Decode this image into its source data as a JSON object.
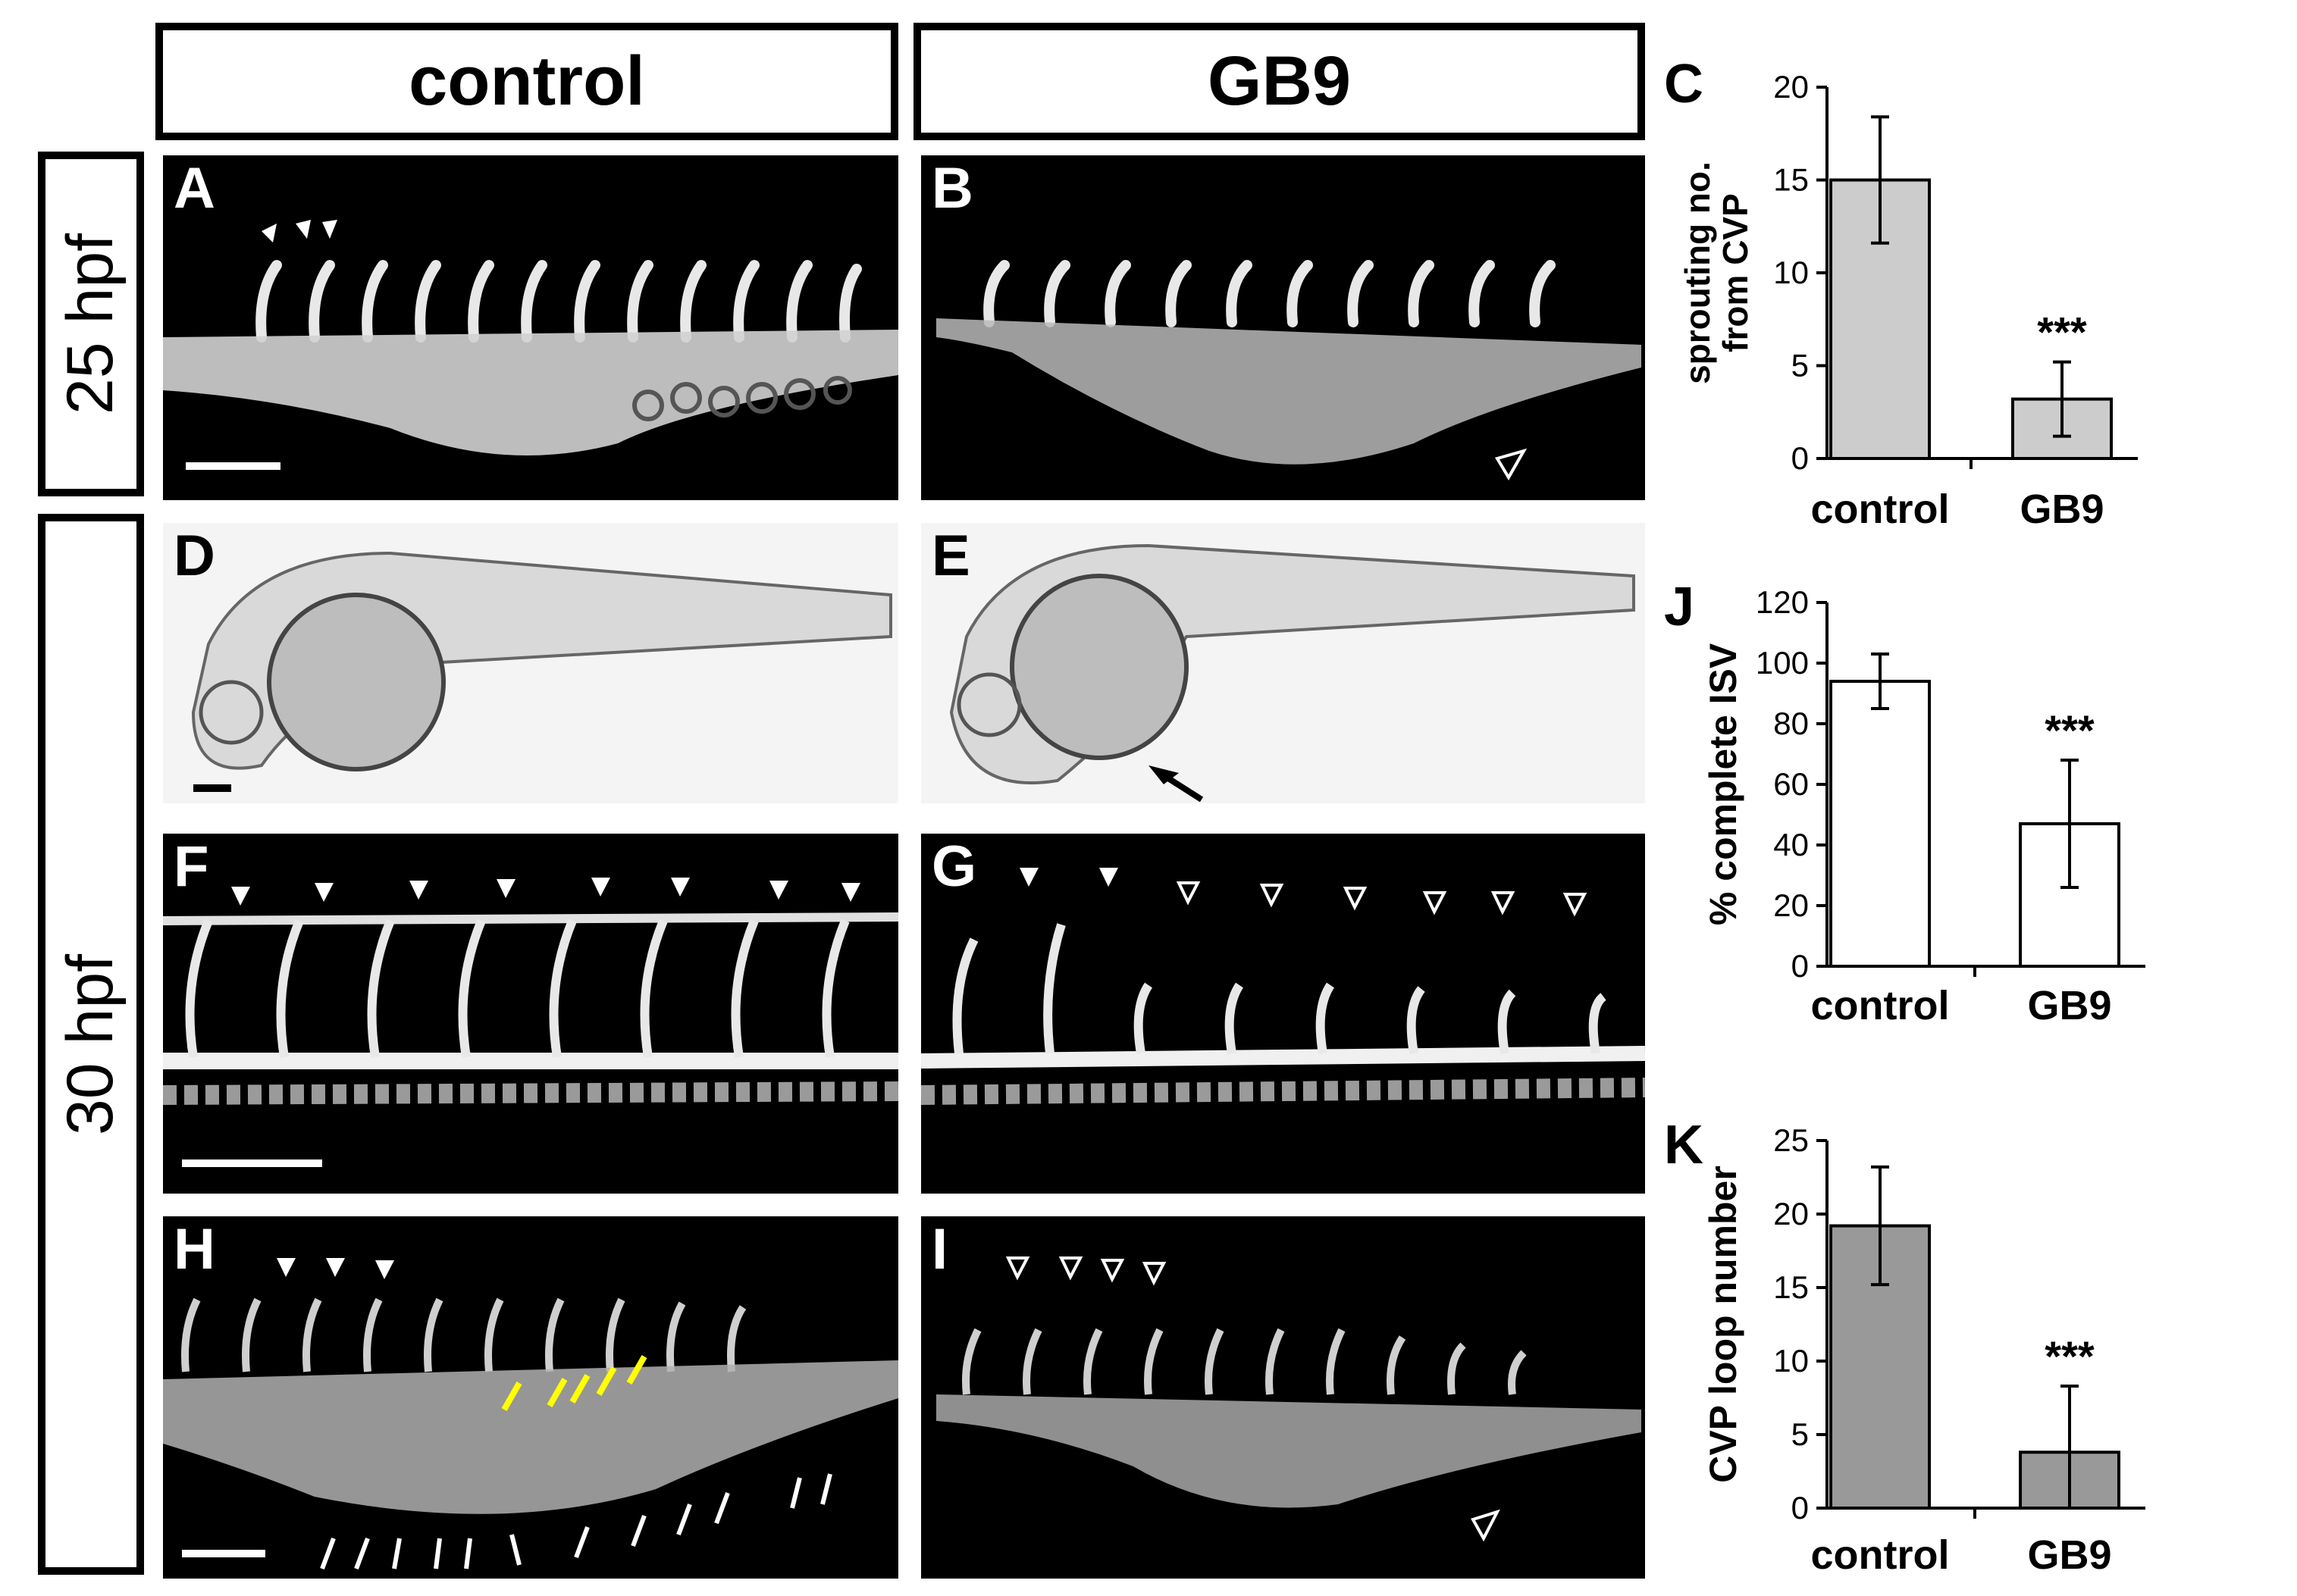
{
  "columns": {
    "left": "control",
    "right": "GB9"
  },
  "rows": {
    "top": "25 hpf",
    "bottom": "30 hpf"
  },
  "panels": {
    "A": "A",
    "B": "B",
    "D": "D",
    "E": "E",
    "F": "F",
    "G": "G",
    "H": "H",
    "I": "I"
  },
  "colors": {
    "arrow_white": "#ffffff",
    "arrow_yellow": "#ffff00",
    "fluor_bg": "#000000",
    "bright_bg": "#f4f4f4"
  },
  "chart_data": [
    {
      "panel": "C",
      "type": "bar",
      "categories": [
        "control",
        "GB9"
      ],
      "values": [
        15,
        3.2
      ],
      "errors": [
        3.4,
        2
      ],
      "ylabel": "sprouting no. from CVP",
      "ylim": [
        0,
        20
      ],
      "yticks": [
        0,
        5,
        10,
        15,
        20
      ],
      "bar_color": "#cccccc",
      "annotations": [
        {
          "category": "GB9",
          "text": "***"
        }
      ]
    },
    {
      "panel": "J",
      "type": "bar",
      "categories": [
        "control",
        "GB9"
      ],
      "values": [
        94,
        47
      ],
      "errors": [
        9,
        21
      ],
      "ylabel": "% complete ISV",
      "ylim": [
        0,
        120
      ],
      "yticks": [
        0,
        20,
        40,
        60,
        80,
        100,
        120
      ],
      "bar_color": "#ffffff",
      "annotations": [
        {
          "category": "GB9",
          "text": "***"
        }
      ]
    },
    {
      "panel": "K",
      "type": "bar",
      "categories": [
        "control",
        "GB9"
      ],
      "values": [
        19.2,
        3.8
      ],
      "errors": [
        4,
        4.5
      ],
      "ylabel": "CVP loop number",
      "ylim": [
        0,
        25
      ],
      "yticks": [
        0,
        5,
        10,
        15,
        20,
        25
      ],
      "bar_color": "#999999",
      "annotations": [
        {
          "category": "GB9",
          "text": "***"
        }
      ]
    }
  ]
}
